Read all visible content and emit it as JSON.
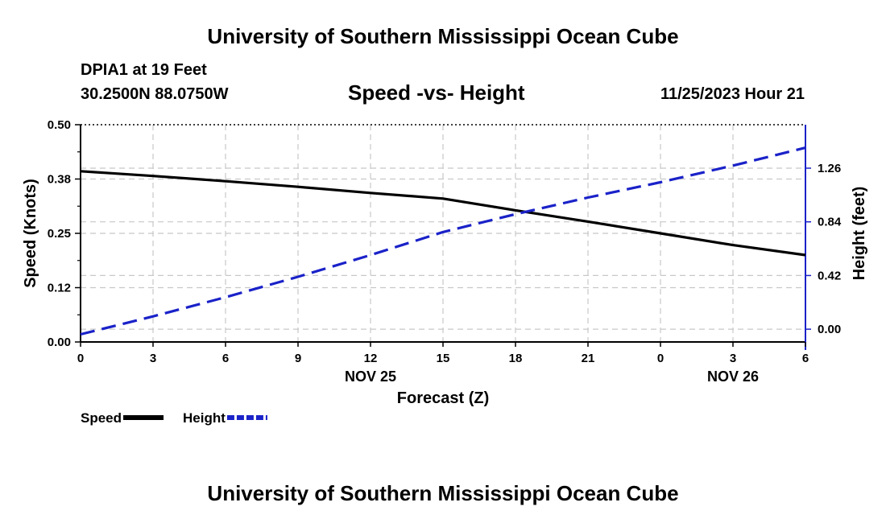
{
  "header": {
    "title": "University of Southern Mississippi Ocean Cube",
    "station": "DPIA1 at 19 Feet",
    "coords": "30.2500N  88.0750W",
    "subtitle": "Speed -vs- Height",
    "datetime": "11/25/2023 Hour 21"
  },
  "footer": {
    "title": "University of Southern Mississippi Ocean Cube"
  },
  "chart_data": {
    "type": "line",
    "title": "Speed -vs- Height",
    "xlabel": "Forecast (Z)",
    "ylabel": "Speed (Knots)",
    "ylabel_right": "Height (feet)",
    "x_hours": [
      0,
      3,
      6,
      9,
      12,
      15,
      18,
      21,
      24,
      27,
      30
    ],
    "x_tick_labels": [
      "0",
      "3",
      "6",
      "9",
      "12",
      "15",
      "18",
      "21",
      "0",
      "3",
      "6"
    ],
    "date_labels": [
      {
        "hour": 12,
        "label": "NOV 25"
      },
      {
        "hour": 27,
        "label": "NOV 26"
      }
    ],
    "ylim": [
      0,
      0.5
    ],
    "y_ticks": [
      0.0,
      0.125,
      0.25,
      0.375,
      0.5
    ],
    "y_tick_labels": [
      "0.00",
      "0.12",
      "0.25",
      "0.38",
      "0.50"
    ],
    "ylim_right": [
      -0.1,
      1.6
    ],
    "y_ticks_right": [
      0.0,
      0.42,
      0.84,
      1.26
    ],
    "y_tick_labels_right": [
      "0.00",
      "0.42",
      "0.84",
      "1.26"
    ],
    "series": [
      {
        "name": "Speed",
        "axis": "left",
        "color": "#000000",
        "dash": "solid",
        "x": [
          0,
          3,
          6,
          9,
          12,
          15,
          18,
          21,
          24,
          27,
          30
        ],
        "values": [
          0.393,
          0.382,
          0.37,
          0.357,
          0.343,
          0.33,
          0.303,
          0.277,
          0.25,
          0.223,
          0.2
        ]
      },
      {
        "name": "Height",
        "axis": "right",
        "color": "#1a22c8",
        "dash": "dashed",
        "x": [
          0,
          3,
          6,
          9,
          12,
          15,
          18,
          21,
          24,
          27,
          30
        ],
        "values": [
          -0.04,
          0.1,
          0.25,
          0.41,
          0.58,
          0.76,
          0.9,
          1.03,
          1.15,
          1.28,
          1.42
        ]
      }
    ]
  }
}
